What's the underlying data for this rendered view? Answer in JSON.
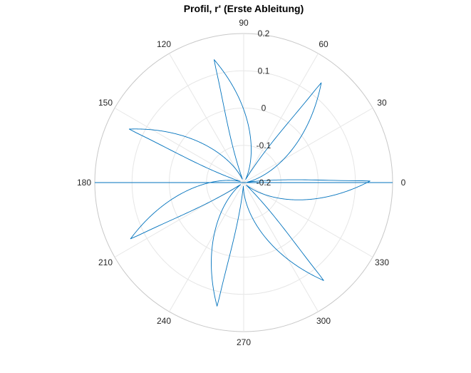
{
  "chart_data": {
    "type": "polar-line",
    "title": "Profil, r' (Erste Ableitung)",
    "theta_unit": "degrees",
    "theta_ticks": [
      0,
      30,
      60,
      90,
      120,
      150,
      180,
      210,
      240,
      270,
      300,
      330
    ],
    "theta_tick_labels": [
      "0",
      "30",
      "60",
      "90",
      "120",
      "150",
      "180",
      "210",
      "240",
      "270",
      "300",
      "330"
    ],
    "r_lim": [
      -0.2,
      0.2
    ],
    "r_ticks": [
      -0.2,
      -0.1,
      0,
      0.1,
      0.2
    ],
    "r_tick_labels": [
      "-0.2",
      "-0.1",
      "0",
      "0.1",
      "0.2"
    ],
    "r_tick_label_angle_deg": 90,
    "grid": true,
    "series": [
      {
        "color": "#0072bd",
        "description_points": "7-petal rotating pinwheel profile",
        "points": [
          {
            "theta": 0,
            "r": -0.045
          },
          {
            "theta": 2,
            "r": -0.06
          },
          {
            "theta": 4,
            "r": -0.085
          },
          {
            "theta": 5,
            "r": -0.17
          },
          {
            "theta": 6,
            "r": -0.19
          },
          {
            "theta": 10,
            "r": -0.175
          },
          {
            "theta": 15,
            "r": -0.145
          },
          {
            "theta": 20,
            "r": -0.11
          },
          {
            "theta": 25,
            "r": -0.07
          },
          {
            "theta": 30,
            "r": -0.03
          },
          {
            "theta": 35,
            "r": 0.01
          },
          {
            "theta": 40,
            "r": 0.05
          },
          {
            "theta": 45,
            "r": 0.09
          },
          {
            "theta": 49,
            "r": 0.12
          },
          {
            "theta": 51.4,
            "r": 0.141
          },
          {
            "theta": 53,
            "r": 0.13
          },
          {
            "theta": 55,
            "r": 0.08
          }
        ],
        "petals": 7,
        "petal_tip_theta": [
          7,
          58.4,
          109.9,
          161.3,
          212.7,
          264.1,
          315.6
        ],
        "petal_tip_r": 0.141,
        "petal_min_r": -0.19,
        "radial_line_through_0_and_180": true
      }
    ]
  }
}
